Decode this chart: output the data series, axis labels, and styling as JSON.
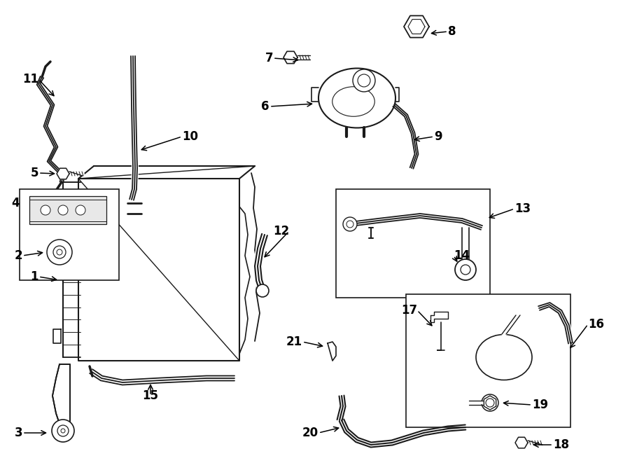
{
  "bg_color": "#ffffff",
  "lc": "#1a1a1a",
  "lw": 1.2,
  "fig_w": 9.0,
  "fig_h": 6.61,
  "dpi": 100
}
